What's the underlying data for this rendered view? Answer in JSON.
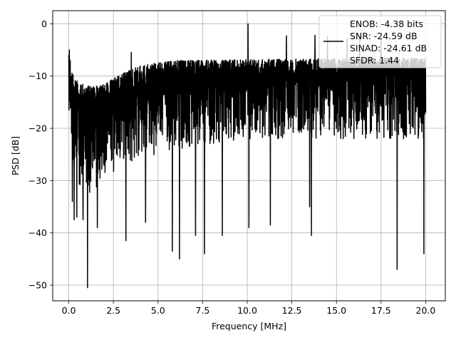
{
  "chart_data": {
    "type": "line",
    "title": "",
    "xlabel": "Frequency [MHz]",
    "ylabel": "PSD [dB]",
    "xlim": [
      -0.9,
      21.1
    ],
    "ylim": [
      -53,
      2.5
    ],
    "xticks": [
      0.0,
      2.5,
      5.0,
      7.5,
      10.0,
      12.5,
      15.0,
      17.5,
      20.0
    ],
    "xtick_labels": [
      "0.0",
      "2.5",
      "5.0",
      "7.5",
      "10.0",
      "12.5",
      "15.0",
      "17.5",
      "20.0"
    ],
    "yticks": [
      0,
      -10,
      -20,
      -30,
      -40,
      -50
    ],
    "ytick_labels": [
      "0",
      "−10",
      "−20",
      "−30",
      "−40",
      "−50"
    ],
    "grid": true,
    "legend_position": "top-right",
    "legend_lines": [
      "ENOB: -4.38 bits",
      "SNR: -24.59 dB",
      "SINAD: -24.61 dB",
      "SFDR: 1.44"
    ],
    "series_color": "#000000",
    "series": [
      {
        "x_range": [
          0,
          20
        ],
        "num_points": 2000,
        "envelope_top": [
          [
            0,
            -6
          ],
          [
            0.1,
            -9
          ],
          [
            0.5,
            -11
          ],
          [
            1,
            -12
          ],
          [
            2,
            -11.5
          ],
          [
            3,
            -9.5
          ],
          [
            4,
            -8
          ],
          [
            6,
            -7
          ],
          [
            20,
            -6.5
          ]
        ],
        "envelope_bottom": [
          [
            0,
            -26
          ],
          [
            0.2,
            -32
          ],
          [
            1,
            -33
          ],
          [
            3,
            -27
          ],
          [
            6,
            -24
          ],
          [
            10,
            -22
          ],
          [
            20,
            -22
          ]
        ],
        "peaks": [
          [
            0.03,
            -5
          ],
          [
            0.08,
            -7
          ],
          [
            0.05,
            -8.5
          ],
          [
            3.5,
            -5.5
          ],
          [
            7.1,
            -4.5
          ],
          [
            10.05,
            0
          ],
          [
            12.2,
            -2.3
          ],
          [
            13.8,
            -2.2
          ],
          [
            14.5,
            -2.4
          ],
          [
            15.6,
            -2.8
          ],
          [
            16.3,
            -2.5
          ],
          [
            17.5,
            -2.6
          ]
        ],
        "troughs": [
          [
            0.2,
            -34
          ],
          [
            0.3,
            -37.5
          ],
          [
            0.45,
            -37
          ],
          [
            0.8,
            -37.5
          ],
          [
            1.05,
            -50.5
          ],
          [
            1.6,
            -39
          ],
          [
            3.2,
            -41.5
          ],
          [
            4.3,
            -38
          ],
          [
            5.8,
            -43.5
          ],
          [
            6.2,
            -45
          ],
          [
            7.1,
            -40.5
          ],
          [
            7.6,
            -44
          ],
          [
            8.6,
            -40.5
          ],
          [
            10.1,
            -39
          ],
          [
            11.3,
            -38.5
          ],
          [
            13.5,
            -35
          ],
          [
            13.6,
            -40.5
          ],
          [
            18.4,
            -47
          ],
          [
            19.9,
            -44
          ]
        ]
      }
    ]
  }
}
